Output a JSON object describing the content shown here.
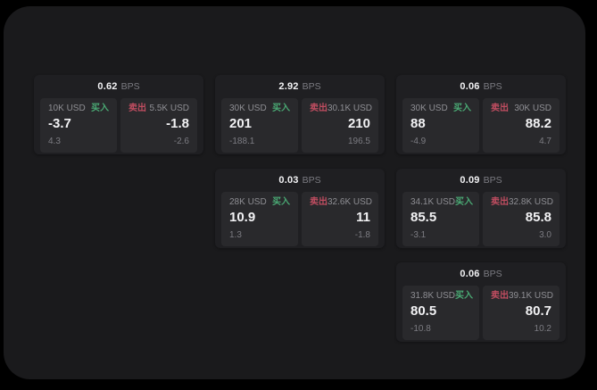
{
  "labels": {
    "unit": "BPS",
    "buy": "买入",
    "sell": "卖出"
  },
  "colors": {
    "buy_green": "#4aa974",
    "sell_rose": "#bf4d60",
    "panel_background": "#1a1a1c",
    "card_background": "#1f1f22",
    "quote_background": "#29292c"
  },
  "cards": [
    {
      "bps": "0.62",
      "row": 1,
      "col": 1,
      "buy": {
        "amount": "10K USD",
        "price": "-3.7",
        "sub": "4.3"
      },
      "sell": {
        "amount": "5.5K USD",
        "price": "-1.8",
        "sub": "-2.6"
      }
    },
    {
      "bps": "2.92",
      "row": 1,
      "col": 2,
      "buy": {
        "amount": "30K USD",
        "price": "201",
        "sub": "-188.1"
      },
      "sell": {
        "amount": "30.1K USD",
        "price": "210",
        "sub": "196.5"
      }
    },
    {
      "bps": "0.06",
      "row": 1,
      "col": 3,
      "buy": {
        "amount": "30K USD",
        "price": "88",
        "sub": "-4.9"
      },
      "sell": {
        "amount": "30K USD",
        "price": "88.2",
        "sub": "4.7"
      }
    },
    {
      "bps": "0.03",
      "row": 2,
      "col": 2,
      "buy": {
        "amount": "28K USD",
        "price": "10.9",
        "sub": "1.3"
      },
      "sell": {
        "amount": "32.6K USD",
        "price": "11",
        "sub": "-1.8"
      }
    },
    {
      "bps": "0.09",
      "row": 2,
      "col": 3,
      "buy": {
        "amount": "34.1K USD",
        "price": "85.5",
        "sub": "-3.1"
      },
      "sell": {
        "amount": "32.8K USD",
        "price": "85.8",
        "sub": "3.0"
      }
    },
    {
      "bps": "0.06",
      "row": 3,
      "col": 3,
      "buy": {
        "amount": "31.8K USD",
        "price": "80.5",
        "sub": "-10.8"
      },
      "sell": {
        "amount": "39.1K USD",
        "price": "80.7",
        "sub": "10.2"
      }
    }
  ]
}
